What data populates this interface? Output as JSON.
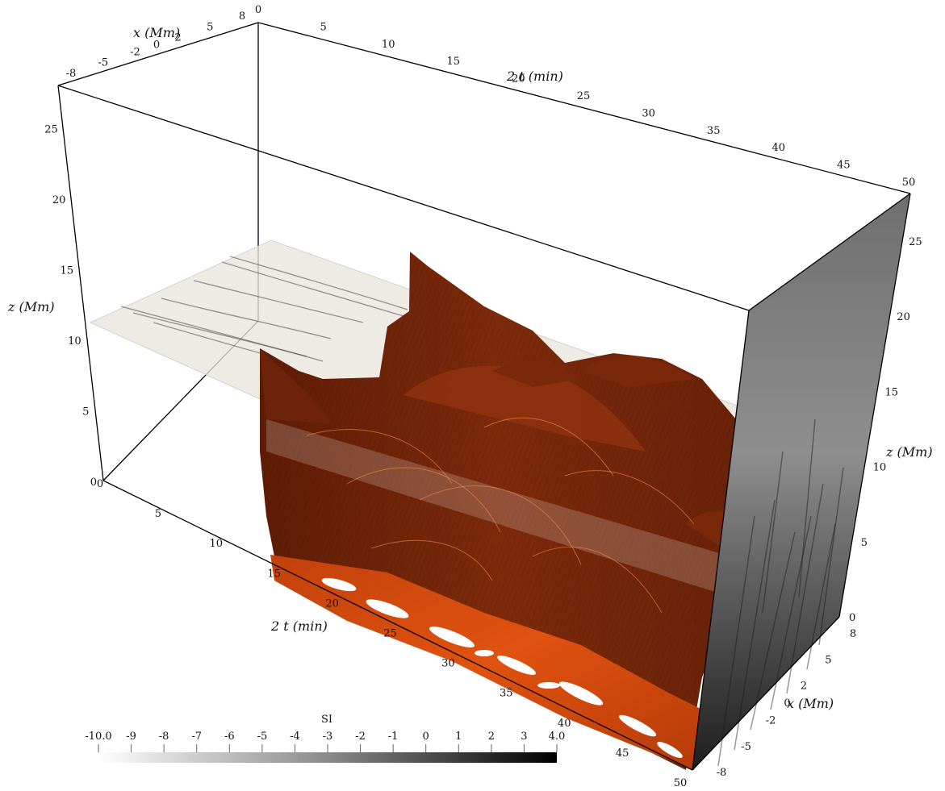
{
  "chart_data": {
    "type": "3d-volume",
    "axes": {
      "t_label": "2 t (min)",
      "x_label": "x (Mm)",
      "z_label": "z (Mm)",
      "t_ticks": [
        "0",
        "5",
        "10",
        "15",
        "20",
        "25",
        "30",
        "35",
        "40",
        "45",
        "50"
      ],
      "x_top_ticks": [
        "-8",
        "-5",
        "-2",
        "0",
        "2",
        "5",
        "8"
      ],
      "x_right_ticks": [
        "8",
        "5",
        "2",
        "0",
        "-2",
        "-5",
        "-8"
      ],
      "z_left_ticks": [
        "0",
        "5",
        "10",
        "15",
        "20",
        "25"
      ],
      "z_right_ticks": [
        "0",
        "5",
        "10",
        "15",
        "20",
        "25"
      ],
      "t_range": [
        0,
        50
      ],
      "x_range": [
        -8,
        8
      ],
      "z_range": [
        0,
        28
      ]
    },
    "slice_plane_z": 13,
    "colorbar": {
      "title": "SI",
      "ticks": [
        "-10.0",
        "-9",
        "-8",
        "-7",
        "-6",
        "-5",
        "-4",
        "-3",
        "-2",
        "-1",
        "0",
        "1",
        "2",
        "3",
        "4.0"
      ],
      "range": [
        -10,
        4
      ],
      "colors": [
        "#ffffff",
        "#000000"
      ]
    },
    "colors": {
      "surface_dark": "#6e2208",
      "surface_mid": "#8f3410",
      "surface_bright": "#e3520f",
      "right_face": "#8a8a8a"
    }
  }
}
